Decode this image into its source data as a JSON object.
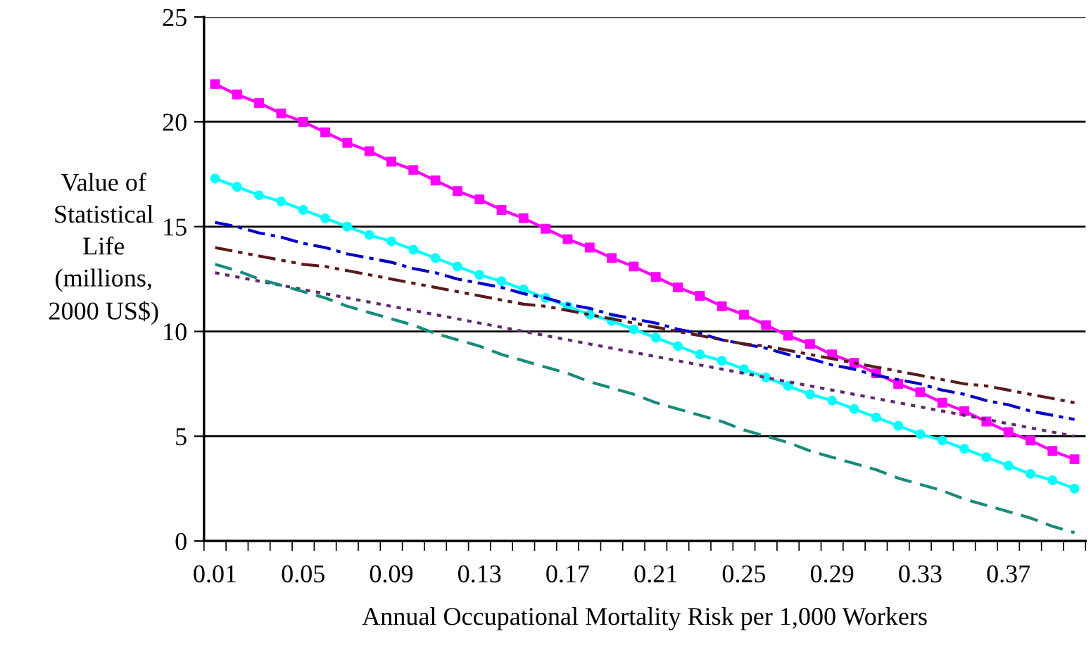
{
  "chart_data": {
    "type": "line",
    "xlabel": "Annual Occupational Mortality Risk per 1,000 Workers",
    "ylabel": "Value of\nStatistical\nLife\n(millions,\n2000 US$)",
    "categories": [
      "0.01",
      null,
      null,
      null,
      "0.05",
      null,
      null,
      null,
      "0.09",
      null,
      null,
      null,
      "0.13",
      null,
      null,
      null,
      "0.17",
      null,
      null,
      null,
      "0.21",
      null,
      null,
      null,
      "0.25",
      null,
      null,
      null,
      "0.29",
      null,
      null,
      null,
      "0.33",
      null,
      null,
      null,
      "0.37",
      null,
      null,
      null
    ],
    "ylim": [
      0,
      25
    ],
    "yticks": [
      0,
      5,
      10,
      15,
      20,
      25
    ],
    "grid": "y",
    "series": [
      {
        "color": "#ff00ff",
        "marker": "square",
        "line_style": "solid",
        "values": [
          21.8,
          21.3,
          20.9,
          20.4,
          20.0,
          19.5,
          19.0,
          18.6,
          18.1,
          17.7,
          17.2,
          16.7,
          16.3,
          15.8,
          15.4,
          14.9,
          14.4,
          14.0,
          13.5,
          13.1,
          12.6,
          12.1,
          11.7,
          11.2,
          10.8,
          10.3,
          9.8,
          9.4,
          8.9,
          8.5,
          8.0,
          7.5,
          7.1,
          6.6,
          6.2,
          5.7,
          5.2,
          4.8,
          4.3,
          3.9
        ]
      },
      {
        "color": "#00ffff",
        "marker": "circle",
        "line_style": "solid",
        "values": [
          17.3,
          16.9,
          16.5,
          16.2,
          15.8,
          15.4,
          15.0,
          14.6,
          14.3,
          13.9,
          13.5,
          13.1,
          12.7,
          12.4,
          12.0,
          11.6,
          11.2,
          10.8,
          10.5,
          10.1,
          9.7,
          9.3,
          8.9,
          8.6,
          8.2,
          7.8,
          7.4,
          7.0,
          6.7,
          6.3,
          5.9,
          5.5,
          5.1,
          4.8,
          4.4,
          4.0,
          3.6,
          3.2,
          2.9,
          2.5
        ]
      },
      {
        "color": "#0000cc",
        "marker": "none",
        "line_style": "dashdot",
        "values": [
          15.2,
          15.0,
          14.7,
          14.5,
          14.2,
          14.0,
          13.7,
          13.5,
          13.3,
          13.0,
          12.8,
          12.5,
          12.3,
          12.1,
          11.8,
          11.6,
          11.3,
          11.1,
          10.8,
          10.6,
          10.4,
          10.1,
          9.9,
          9.6,
          9.4,
          9.2,
          8.9,
          8.7,
          8.4,
          8.2,
          7.9,
          7.7,
          7.5,
          7.2,
          7.0,
          6.7,
          6.5,
          6.2,
          6.0,
          5.8
        ]
      },
      {
        "color": "#5a1a1a",
        "marker": "none",
        "line_style": "dashdotdot",
        "values": [
          14.0,
          13.8,
          13.6,
          13.4,
          13.2,
          13.1,
          12.9,
          12.7,
          12.5,
          12.3,
          12.1,
          11.9,
          11.7,
          11.5,
          11.3,
          11.2,
          11.0,
          10.8,
          10.6,
          10.4,
          10.2,
          10.0,
          9.8,
          9.6,
          9.4,
          9.3,
          9.1,
          8.9,
          8.7,
          8.5,
          8.3,
          8.1,
          7.9,
          7.7,
          7.5,
          7.4,
          7.2,
          7.0,
          6.8,
          6.6
        ]
      },
      {
        "color": "#602a70",
        "marker": "none",
        "line_style": "dotted",
        "values": [
          12.8,
          12.6,
          12.4,
          12.2,
          12.0,
          11.8,
          11.6,
          11.4,
          11.2,
          11.0,
          10.8,
          10.6,
          10.4,
          10.2,
          10.0,
          9.8,
          9.6,
          9.4,
          9.2,
          9.0,
          8.8,
          8.6,
          8.4,
          8.2,
          8.0,
          7.8,
          7.6,
          7.4,
          7.2,
          7.0,
          6.8,
          6.6,
          6.4,
          6.2,
          6.0,
          5.8,
          5.6,
          5.4,
          5.2,
          5.0
        ]
      },
      {
        "color": "#1a8a7a",
        "marker": "none",
        "line_style": "dashed",
        "values": [
          13.2,
          12.9,
          12.5,
          12.2,
          11.9,
          11.6,
          11.2,
          10.9,
          10.6,
          10.3,
          9.9,
          9.6,
          9.3,
          8.9,
          8.6,
          8.3,
          8.0,
          7.6,
          7.3,
          7.0,
          6.6,
          6.3,
          6.0,
          5.7,
          5.3,
          5.0,
          4.7,
          4.3,
          4.0,
          3.7,
          3.4,
          3.0,
          2.7,
          2.4,
          2.0,
          1.7,
          1.4,
          1.1,
          0.7,
          0.4
        ]
      }
    ]
  }
}
